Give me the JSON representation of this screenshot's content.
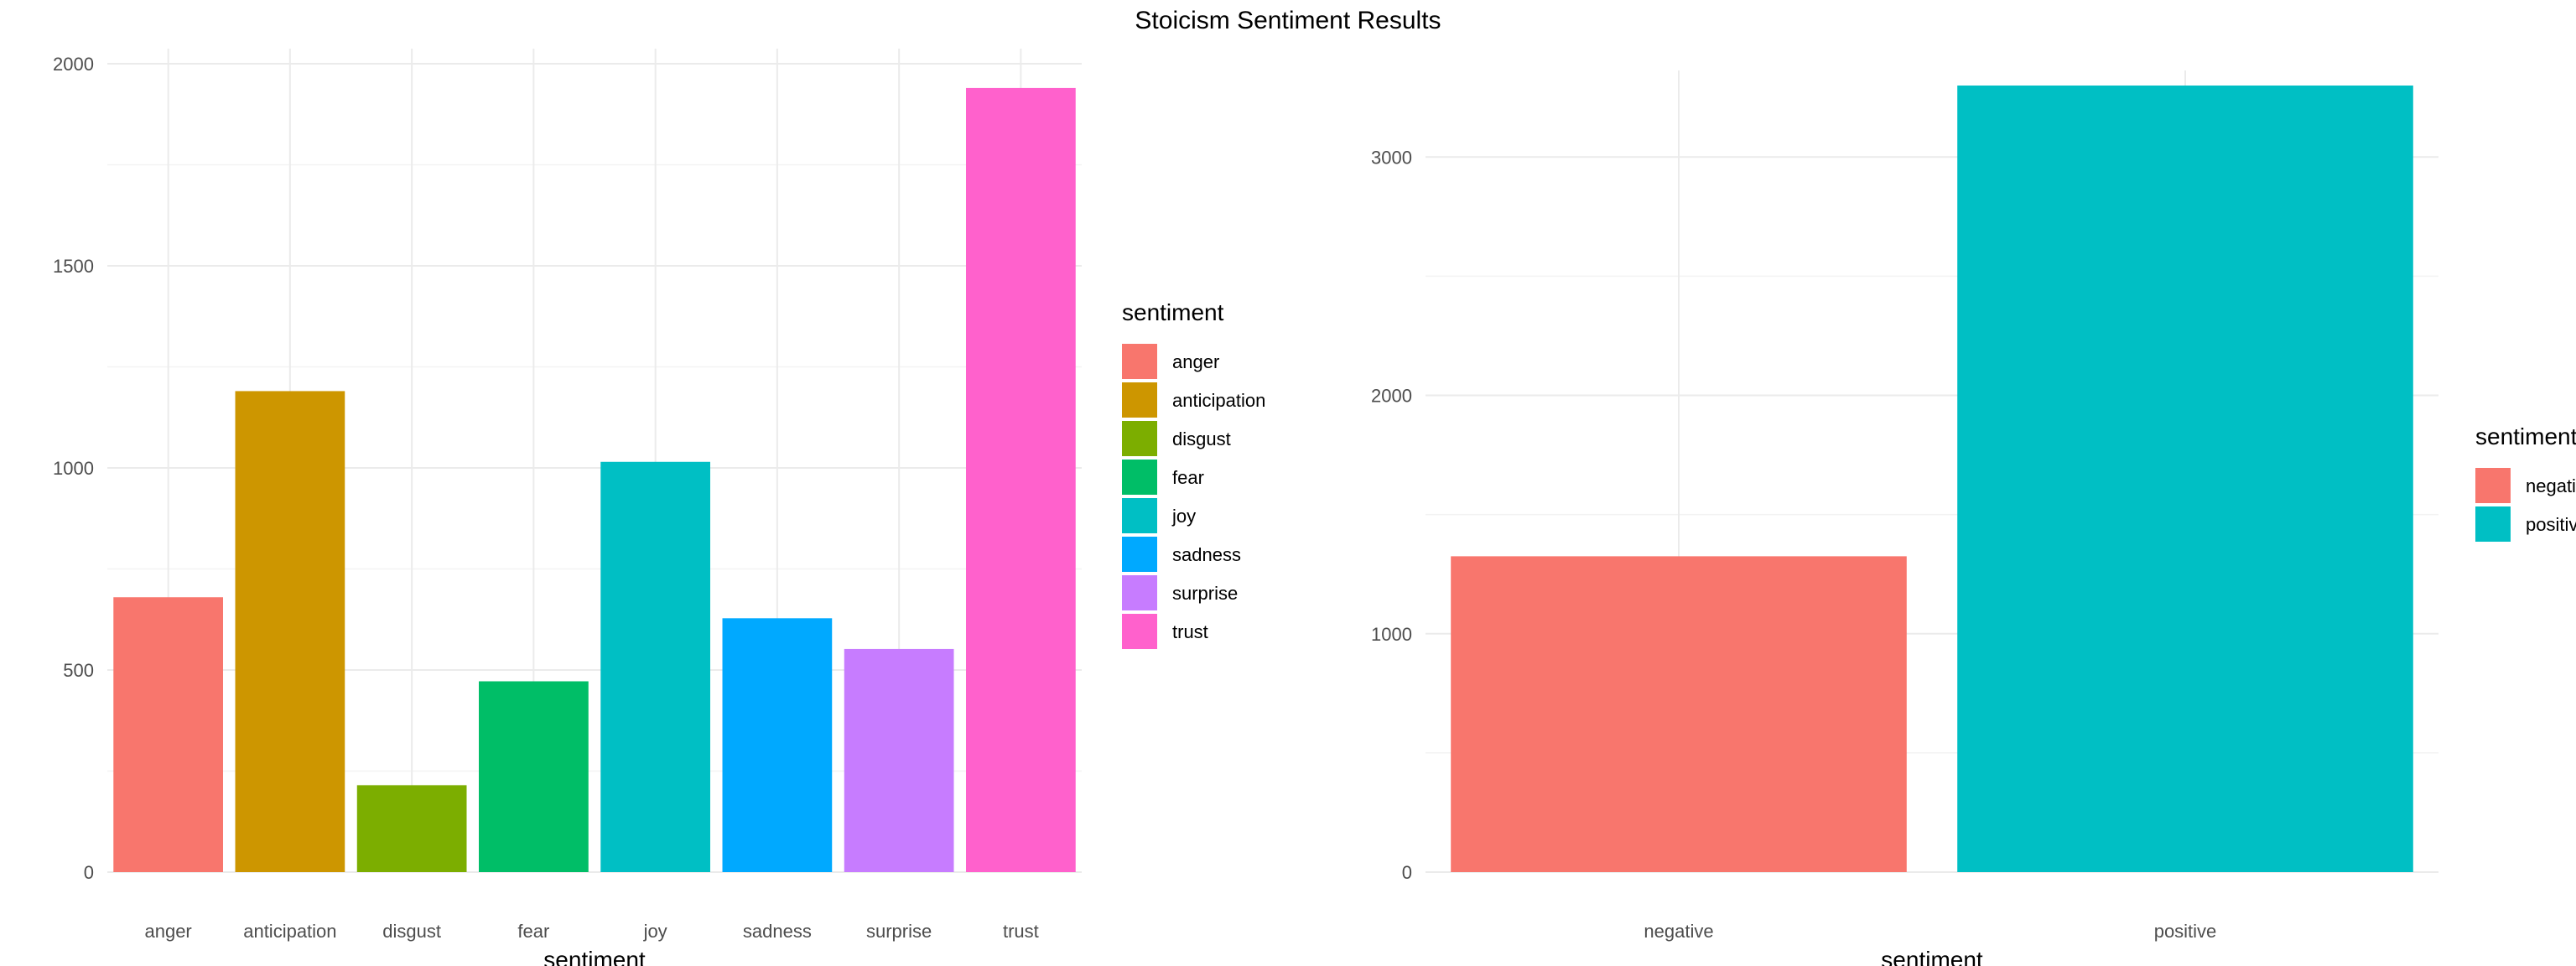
{
  "title": "Stoicism Sentiment Results",
  "chart_data": [
    {
      "type": "bar",
      "categories": [
        "anger",
        "anticipation",
        "disgust",
        "fear",
        "joy",
        "sadness",
        "surprise",
        "trust"
      ],
      "values": [
        680,
        1190,
        215,
        472,
        1015,
        628,
        552,
        1940
      ],
      "colors": [
        "#F8766D",
        "#CD9600",
        "#7CAE00",
        "#00BE67",
        "#00BFC4",
        "#00A9FF",
        "#C77CFF",
        "#FF61CC"
      ],
      "xlabel": "sentiment",
      "ylabel": "",
      "ylim": [
        0,
        2000
      ],
      "yticks": [
        0,
        500,
        1000,
        1500,
        2000
      ],
      "grid": true,
      "legend": {
        "title": "sentiment",
        "placement": "right",
        "items": [
          "anger",
          "anticipation",
          "disgust",
          "fear",
          "joy",
          "sadness",
          "surprise",
          "trust"
        ]
      }
    },
    {
      "type": "bar",
      "categories": [
        "negative",
        "positive"
      ],
      "values": [
        1325,
        3300
      ],
      "colors": [
        "#F8766D",
        "#00BFC4"
      ],
      "xlabel": "sentiment",
      "ylabel": "",
      "ylim": [
        0,
        3300
      ],
      "yticks": [
        0,
        1000,
        2000,
        3000
      ],
      "grid": true,
      "legend": {
        "title": "sentiment",
        "placement": "right",
        "items": [
          "negative",
          "positive"
        ]
      }
    }
  ]
}
